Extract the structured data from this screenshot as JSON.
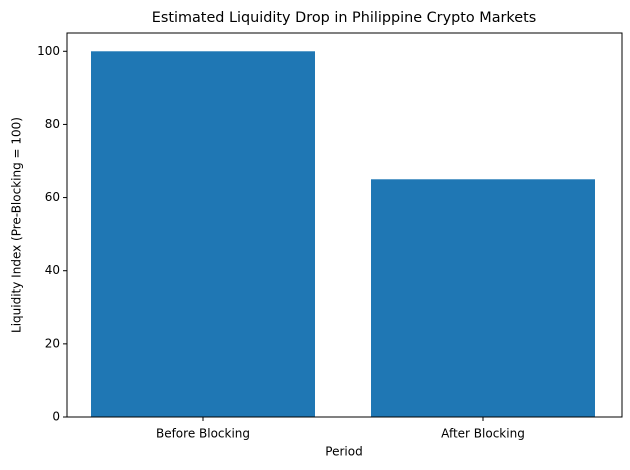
{
  "chart_data": {
    "type": "bar",
    "title": "Estimated Liquidity Drop in Philippine Crypto Markets",
    "x_label": "Period",
    "y_label": "Liquidity Index (Pre-Blocking = 100)",
    "categories": [
      "Before Blocking",
      "After Blocking"
    ],
    "values": [
      100,
      65
    ],
    "color": "#1f77b4",
    "ylim": [
      0,
      105
    ],
    "yticks": [
      0,
      20,
      40,
      60,
      80,
      100
    ],
    "grid": false
  }
}
